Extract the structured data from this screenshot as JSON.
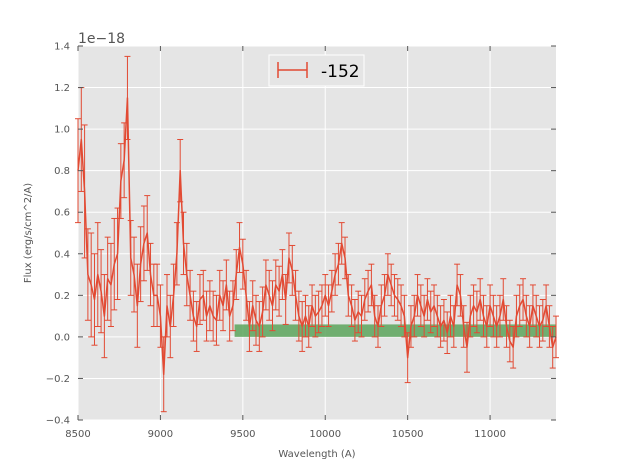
{
  "chart_data": {
    "type": "line",
    "xlabel": "Wavelength (A)",
    "ylabel": "Flux (erg/s/cm^2/A)",
    "offset_text": "1e−18",
    "xlim": [
      8500,
      11400
    ],
    "ylim": [
      -0.4,
      1.4
    ],
    "y_scale_exponent": -18,
    "grid": true,
    "legend_position": "top-center",
    "x_ticks": [
      8500,
      9000,
      9500,
      10000,
      10500,
      11000
    ],
    "x_tick_labels": [
      "8500",
      "9000",
      "9500",
      "10000",
      "10500",
      "11000"
    ],
    "y_ticks": [
      -0.4,
      -0.2,
      0.0,
      0.2,
      0.4,
      0.6,
      0.8,
      1.0,
      1.2,
      1.4
    ],
    "y_tick_labels": [
      "−0.4",
      "−0.2",
      "0.0",
      "0.2",
      "0.4",
      "0.6",
      "0.8",
      "1.0",
      "1.2",
      "1.4"
    ],
    "colors": {
      "series": "#e24a33",
      "band": "#5ca55c",
      "axes_bg": "#e5e5e5",
      "grid": "#ffffff"
    },
    "band": {
      "x": [
        9450,
        11400
      ],
      "y": [
        0.0,
        0.06
      ]
    },
    "series": [
      {
        "name": "-152",
        "x": [
          8500,
          8520,
          8540,
          8560,
          8580,
          8600,
          8620,
          8640,
          8660,
          8680,
          8700,
          8720,
          8740,
          8760,
          8780,
          8800,
          8820,
          8840,
          8860,
          8880,
          8900,
          8920,
          8940,
          8960,
          8980,
          9000,
          9020,
          9040,
          9060,
          9080,
          9100,
          9120,
          9140,
          9160,
          9180,
          9200,
          9220,
          9240,
          9260,
          9280,
          9300,
          9320,
          9340,
          9360,
          9380,
          9400,
          9420,
          9440,
          9460,
          9480,
          9500,
          9520,
          9540,
          9560,
          9580,
          9600,
          9620,
          9640,
          9660,
          9680,
          9700,
          9720,
          9740,
          9760,
          9780,
          9800,
          9820,
          9840,
          9860,
          9880,
          9900,
          9920,
          9940,
          9960,
          9980,
          10000,
          10020,
          10040,
          10060,
          10080,
          10100,
          10120,
          10140,
          10160,
          10180,
          10200,
          10220,
          10240,
          10260,
          10280,
          10300,
          10320,
          10340,
          10360,
          10380,
          10400,
          10420,
          10440,
          10460,
          10480,
          10500,
          10520,
          10540,
          10560,
          10580,
          10600,
          10620,
          10640,
          10660,
          10680,
          10700,
          10720,
          10740,
          10760,
          10780,
          10800,
          10820,
          10840,
          10860,
          10880,
          10900,
          10920,
          10940,
          10960,
          10980,
          11000,
          11020,
          11040,
          11060,
          11080,
          11100,
          11120,
          11140,
          11160,
          11180,
          11200,
          11220,
          11240,
          11260,
          11280,
          11300,
          11320,
          11340,
          11360,
          11380,
          11400
        ],
        "y": [
          0.8,
          0.95,
          0.7,
          0.3,
          0.25,
          0.18,
          0.3,
          0.22,
          0.1,
          0.28,
          0.25,
          0.35,
          0.4,
          0.75,
          0.85,
          1.15,
          0.38,
          0.3,
          0.15,
          0.35,
          0.45,
          0.5,
          0.3,
          0.2,
          0.2,
          0.1,
          -0.18,
          0.15,
          0.05,
          0.2,
          0.4,
          0.8,
          0.45,
          0.3,
          0.2,
          0.1,
          0.05,
          0.18,
          0.2,
          0.1,
          0.15,
          0.1,
          0.08,
          0.2,
          0.15,
          0.25,
          0.1,
          0.15,
          0.3,
          0.43,
          0.35,
          0.2,
          0.05,
          0.15,
          0.08,
          0.05,
          0.12,
          0.25,
          0.2,
          0.15,
          0.25,
          0.22,
          0.3,
          0.18,
          0.38,
          0.32,
          0.2,
          0.1,
          0.05,
          0.1,
          0.05,
          0.15,
          0.1,
          0.12,
          0.15,
          0.2,
          0.15,
          0.22,
          0.3,
          0.35,
          0.45,
          0.38,
          0.2,
          0.15,
          0.08,
          0.12,
          0.1,
          0.18,
          0.22,
          0.25,
          0.1,
          0.05,
          0.15,
          0.2,
          0.3,
          0.25,
          0.2,
          0.18,
          0.15,
          0.1,
          -0.1,
          0.05,
          0.1,
          0.2,
          0.15,
          0.1,
          0.18,
          0.12,
          0.15,
          0.1,
          0.05,
          0.08,
          0.02,
          0.1,
          0.05,
          0.25,
          0.2,
          0.05,
          -0.05,
          0.1,
          0.15,
          0.12,
          0.18,
          0.1,
          0.05,
          0.15,
          0.1,
          0.05,
          0.1,
          0.18,
          0.05,
          -0.02,
          -0.05,
          0.1,
          0.15,
          0.18,
          0.1,
          0.05,
          0.15,
          0.1,
          0.05,
          0.08,
          0.15,
          0.05,
          -0.05,
          0.0
        ],
        "err": [
          0.25,
          0.25,
          0.32,
          0.22,
          0.25,
          0.22,
          0.25,
          0.2,
          0.2,
          0.2,
          0.2,
          0.22,
          0.22,
          0.18,
          0.18,
          0.2,
          0.18,
          0.18,
          0.2,
          0.18,
          0.18,
          0.18,
          0.15,
          0.15,
          0.15,
          0.15,
          0.18,
          0.15,
          0.15,
          0.15,
          0.15,
          0.15,
          0.15,
          0.15,
          0.12,
          0.12,
          0.12,
          0.12,
          0.12,
          0.12,
          0.12,
          0.12,
          0.12,
          0.12,
          0.12,
          0.12,
          0.12,
          0.12,
          0.12,
          0.12,
          0.12,
          0.12,
          0.12,
          0.12,
          0.12,
          0.12,
          0.12,
          0.12,
          0.12,
          0.12,
          0.12,
          0.12,
          0.12,
          0.12,
          0.12,
          0.12,
          0.12,
          0.12,
          0.12,
          0.1,
          0.1,
          0.1,
          0.1,
          0.1,
          0.1,
          0.1,
          0.1,
          0.1,
          0.1,
          0.1,
          0.1,
          0.1,
          0.1,
          0.1,
          0.1,
          0.1,
          0.1,
          0.1,
          0.1,
          0.1,
          0.1,
          0.1,
          0.1,
          0.1,
          0.1,
          0.1,
          0.1,
          0.1,
          0.1,
          0.1,
          0.12,
          0.1,
          0.1,
          0.1,
          0.1,
          0.1,
          0.1,
          0.1,
          0.1,
          0.1,
          0.1,
          0.1,
          0.1,
          0.1,
          0.1,
          0.1,
          0.1,
          0.1,
          0.12,
          0.1,
          0.1,
          0.1,
          0.1,
          0.1,
          0.1,
          0.1,
          0.1,
          0.1,
          0.1,
          0.1,
          0.1,
          0.1,
          0.1,
          0.1,
          0.1,
          0.1,
          0.1,
          0.1,
          0.1,
          0.1,
          0.1,
          0.1,
          0.1,
          0.1,
          0.1,
          0.1
        ]
      }
    ]
  }
}
